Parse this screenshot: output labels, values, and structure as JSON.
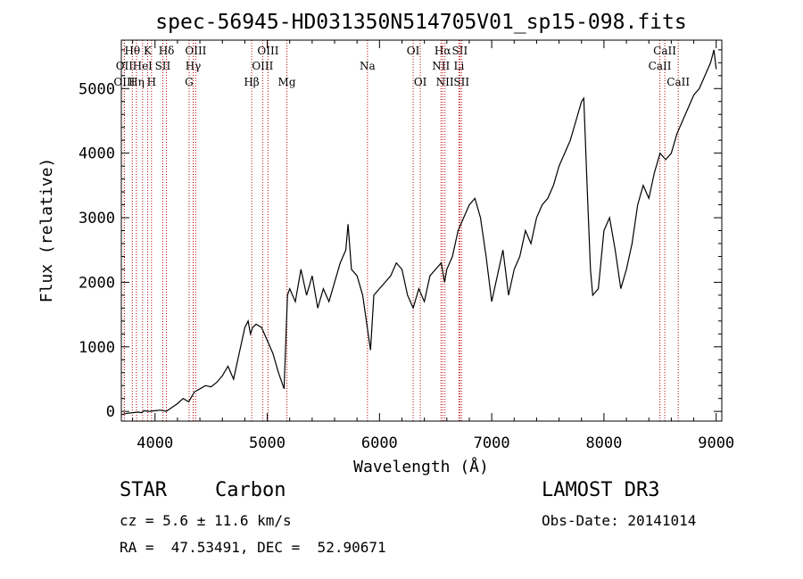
{
  "chart_data": {
    "type": "line",
    "title": "spec-56945-HD031350N514705V01_sp15-098.fits",
    "xlabel": "Wavelength (Å)",
    "ylabel": "Flux (relative)",
    "xlim": [
      3700,
      9050
    ],
    "ylim": [
      -150,
      5750
    ],
    "xticks": [
      4000,
      5000,
      6000,
      7000,
      8000,
      9000
    ],
    "yticks": [
      0,
      1000,
      2000,
      3000,
      4000,
      5000
    ],
    "grid": false,
    "series": [
      {
        "name": "flux",
        "x": [
          3700,
          3750,
          3800,
          3850,
          3880,
          3900,
          3950,
          4000,
          4050,
          4100,
          4150,
          4200,
          4250,
          4300,
          4350,
          4400,
          4450,
          4500,
          4550,
          4600,
          4650,
          4700,
          4750,
          4800,
          4830,
          4850,
          4870,
          4900,
          4950,
          5000,
          5050,
          5100,
          5150,
          5180,
          5200,
          5250,
          5300,
          5350,
          5400,
          5450,
          5500,
          5550,
          5600,
          5650,
          5700,
          5720,
          5750,
          5800,
          5850,
          5900,
          5920,
          5950,
          6000,
          6050,
          6100,
          6150,
          6200,
          6250,
          6300,
          6350,
          6400,
          6450,
          6500,
          6550,
          6580,
          6600,
          6650,
          6700,
          6750,
          6800,
          6850,
          6900,
          6950,
          7000,
          7050,
          7100,
          7150,
          7200,
          7250,
          7300,
          7350,
          7400,
          7450,
          7500,
          7550,
          7600,
          7650,
          7700,
          7750,
          7800,
          7820,
          7850,
          7880,
          7900,
          7950,
          8000,
          8050,
          8100,
          8150,
          8200,
          8250,
          8300,
          8350,
          8400,
          8450,
          8500,
          8550,
          8600,
          8650,
          8700,
          8750,
          8800,
          8850,
          8900,
          8950,
          8980,
          9000
        ],
        "values": [
          -50,
          -30,
          -20,
          -10,
          -20,
          10,
          0,
          10,
          20,
          0,
          60,
          120,
          200,
          150,
          300,
          350,
          400,
          380,
          450,
          550,
          700,
          500,
          900,
          1300,
          1400,
          1200,
          1300,
          1350,
          1300,
          1100,
          900,
          600,
          350,
          1800,
          1900,
          1700,
          2200,
          1800,
          2100,
          1600,
          1900,
          1700,
          2000,
          2300,
          2500,
          2900,
          2200,
          2100,
          1800,
          1200,
          950,
          1800,
          1900,
          2000,
          2100,
          2300,
          2200,
          1800,
          1600,
          1900,
          1700,
          2100,
          2200,
          2300,
          2000,
          2200,
          2400,
          2800,
          3000,
          3200,
          3300,
          3000,
          2400,
          1700,
          2100,
          2500,
          1800,
          2200,
          2400,
          2800,
          2600,
          3000,
          3200,
          3300,
          3500,
          3800,
          4000,
          4200,
          4500,
          4800,
          4850,
          3500,
          2200,
          1800,
          1900,
          2800,
          3000,
          2500,
          1900,
          2200,
          2600,
          3200,
          3500,
          3300,
          3700,
          4000,
          3900,
          4000,
          4300,
          4500,
          4700,
          4900,
          5000,
          5200,
          5400,
          5600,
          5300
        ]
      }
    ],
    "lines": [
      {
        "label": "Hθ",
        "x": 3798,
        "row": 0
      },
      {
        "label": "OII",
        "x": 3727,
        "row": 1
      },
      {
        "label": "OIII",
        "x": 3727,
        "row": 2
      },
      {
        "label": "K",
        "x": 3934,
        "row": 0
      },
      {
        "label": "HeI",
        "x": 3889,
        "row": 1
      },
      {
        "label": "Hη",
        "x": 3835,
        "row": 2
      },
      {
        "label": "SII",
        "x": 4069,
        "row": 1
      },
      {
        "label": "H",
        "x": 3969,
        "row": 2
      },
      {
        "label": "Hδ",
        "x": 4102,
        "row": 0
      },
      {
        "label": "OIII",
        "x": 4363,
        "row": 0
      },
      {
        "label": "Hγ",
        "x": 4340,
        "row": 1
      },
      {
        "label": "G",
        "x": 4304,
        "row": 2
      },
      {
        "label": "OIII",
        "x": 5007,
        "row": 0
      },
      {
        "label": "OIII",
        "x": 4959,
        "row": 1
      },
      {
        "label": "Hβ",
        "x": 4861,
        "row": 2
      },
      {
        "label": "Mg",
        "x": 5175,
        "row": 2
      },
      {
        "label": "Na",
        "x": 5893,
        "row": 1
      },
      {
        "label": "OI",
        "x": 6300,
        "row": 0
      },
      {
        "label": "OI",
        "x": 6364,
        "row": 2
      },
      {
        "label": "Hα",
        "x": 6563,
        "row": 0
      },
      {
        "label": "NII",
        "x": 6548,
        "row": 1
      },
      {
        "label": "NII",
        "x": 6583,
        "row": 2
      },
      {
        "label": "SII",
        "x": 6716,
        "row": 0
      },
      {
        "label": "Li",
        "x": 6708,
        "row": 1
      },
      {
        "label": "SII",
        "x": 6731,
        "row": 2
      },
      {
        "label": "CaII",
        "x": 8542,
        "row": 0
      },
      {
        "label": "CaII",
        "x": 8498,
        "row": 1
      },
      {
        "label": "CaII",
        "x": 8662,
        "row": 2
      }
    ]
  },
  "info": {
    "class": "STAR",
    "subclass": "Carbon",
    "survey": "LAMOST DR3",
    "cz": "cz = 5.6 ± 11.6 km/s",
    "obs_date": "Obs-Date: 20141014",
    "coords": "RA =  47.53491, DEC =  52.90671"
  }
}
